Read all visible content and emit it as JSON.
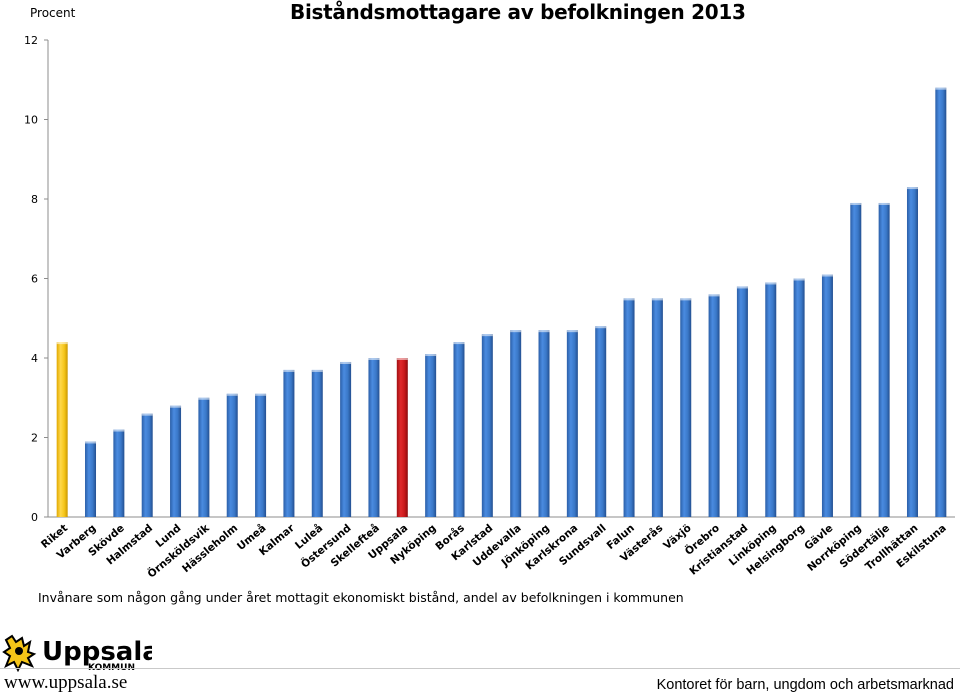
{
  "header": {
    "unit_label": "Procent",
    "title": "Biståndsmottagare av befolkningen 2013"
  },
  "caption": "Invånare som någon gång under året mottagit ekonomiskt bistånd, andel av befolkningen i kommunen",
  "footer": {
    "logo_text": "Uppsala",
    "logo_subtext": "KOMMUN",
    "url": "www.uppsala.se",
    "office": "Kontoret för barn, ungdom och arbetsmarknad"
  },
  "colors": {
    "default_bar": "#3a78c8",
    "riket_bar": "#f5c518",
    "uppsala_bar": "#c8191b",
    "axis": "#8c8c8c"
  },
  "chart_data": {
    "type": "bar",
    "title": "Biståndsmottagare av befolkningen 2013",
    "ylabel": "Procent",
    "xlabel": "",
    "ylim": [
      0,
      12
    ],
    "yticks": [
      0,
      2,
      4,
      6,
      8,
      10,
      12
    ],
    "grid": false,
    "categories": [
      "Riket",
      "Varberg",
      "Skövde",
      "Halmstad",
      "Lund",
      "Örnsköldsvik",
      "Hässleholm",
      "Umeå",
      "Kalmar",
      "Luleå",
      "Östersund",
      "Skellefteå",
      "Uppsala",
      "Nyköping",
      "Borås",
      "Karlstad",
      "Uddevalla",
      "Jönköping",
      "Karlskrona",
      "Sundsvall",
      "Falun",
      "Västerås",
      "Växjö",
      "Örebro",
      "Kristianstad",
      "Linköping",
      "Helsingborg",
      "Gävle",
      "Norrköping",
      "Södertälje",
      "Trollhättan",
      "Eskilstuna"
    ],
    "values": [
      4.4,
      1.9,
      2.2,
      2.6,
      2.8,
      3.0,
      3.1,
      3.1,
      3.7,
      3.7,
      3.9,
      4.0,
      4.0,
      4.1,
      4.4,
      4.6,
      4.7,
      4.7,
      4.7,
      4.8,
      5.5,
      5.5,
      5.5,
      5.6,
      5.8,
      5.9,
      6.0,
      6.1,
      7.9,
      7.9,
      8.3,
      10.8
    ],
    "highlight": {
      "Riket": "riket",
      "Uppsala": "uppsala"
    }
  }
}
